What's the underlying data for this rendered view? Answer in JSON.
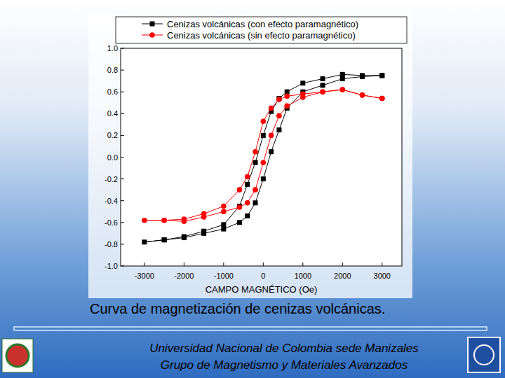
{
  "chart_data": {
    "type": "line",
    "xlabel": "CAMPO MAGNÉTICO (Oe)",
    "caption": "Curva de magnetización de cenizas volcánicas.",
    "footer": [
      "Universidad Nacional de Colombia sede Manizales",
      "Grupo de Magnetismo y Materiales Avanzados"
    ],
    "legend": "top",
    "xlim": [
      -3600,
      3500
    ],
    "xticks": [
      -3000,
      -2000,
      -1000,
      0,
      1000,
      2000,
      3000
    ],
    "ylim": [
      -1,
      1
    ],
    "yticks": [
      {
        "value": -1,
        "label": "-1.0"
      },
      -0.8,
      -0.6,
      -0.4,
      -0.2,
      {
        "value": 0,
        "label": "0.0"
      },
      0.2,
      0.4,
      0.6,
      0.8,
      {
        "value": 1,
        "label": "1.0"
      }
    ],
    "x": [
      3000,
      2500,
      2000,
      1500,
      1000,
      600,
      400,
      200,
      0,
      -200,
      -400,
      -600,
      -1000,
      -1500,
      -2000,
      -2500,
      -3000,
      -2500,
      -2000,
      -1500,
      -1000,
      -600,
      -400,
      -200,
      0,
      200,
      400,
      600,
      1000,
      1500,
      2000,
      2500,
      3000
    ],
    "series": [
      {
        "name": "Cenizas volcánicas (con efecto paramagnético)",
        "color": "#000000",
        "marker": "square",
        "values": [
          0.75,
          0.75,
          0.76,
          0.72,
          0.68,
          0.6,
          0.54,
          0.42,
          0.2,
          -0.05,
          -0.25,
          -0.45,
          -0.62,
          -0.68,
          -0.73,
          -0.76,
          -0.78,
          -0.76,
          -0.74,
          -0.7,
          -0.66,
          -0.6,
          -0.54,
          -0.42,
          -0.2,
          0.05,
          0.25,
          0.45,
          0.6,
          0.66,
          0.72,
          0.74,
          0.75
        ]
      },
      {
        "name": "Cenizas volcánicas (sin efecto paramagnético)",
        "color": "#ff0000",
        "marker": "circle",
        "values": [
          0.54,
          0.57,
          0.62,
          0.6,
          0.58,
          0.56,
          0.53,
          0.45,
          0.33,
          0.05,
          -0.18,
          -0.3,
          -0.45,
          -0.52,
          -0.57,
          -0.58,
          -0.58,
          -0.58,
          -0.59,
          -0.55,
          -0.5,
          -0.46,
          -0.42,
          -0.3,
          -0.05,
          0.2,
          0.38,
          0.47,
          0.55,
          0.6,
          0.62,
          0.57,
          0.54
        ]
      }
    ]
  }
}
